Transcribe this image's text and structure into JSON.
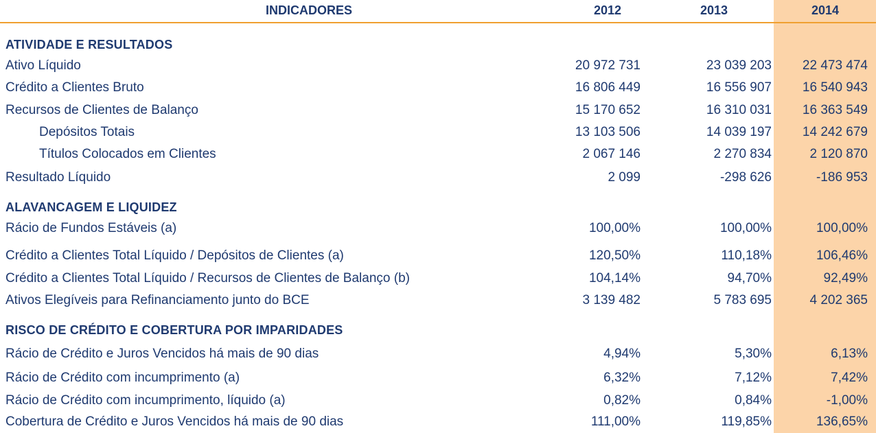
{
  "header": {
    "indicators": "INDICADORES",
    "years": [
      "2012",
      "2013",
      "2014"
    ]
  },
  "sections": [
    {
      "title": "ATIVIDADE E RESULTADOS",
      "rows": [
        {
          "label": "Ativo Líquido",
          "values": [
            "20 972 731",
            "23 039 203",
            "22 473 474"
          ]
        },
        {
          "label": "Crédito a Clientes Bruto",
          "values": [
            "16 806 449",
            "16 556 907",
            "16 540 943"
          ]
        },
        {
          "label": "Recursos de Clientes de Balanço",
          "values": [
            "15 170 652",
            "16 310 031",
            "16 363 549"
          ]
        },
        {
          "label": "Depósitos Totais",
          "values": [
            "13 103 506",
            "14 039 197",
            "14 242 679"
          ],
          "indent": true
        },
        {
          "label": "Títulos Colocados em Clientes",
          "values": [
            "2 067 146",
            "2 270 834",
            "2 120 870"
          ],
          "indent": true
        },
        {
          "label": "Resultado Líquido",
          "values": [
            "2 099",
            "-298 626",
            "-186 953"
          ]
        }
      ]
    },
    {
      "title": "ALAVANCAGEM E LIQUIDEZ",
      "rows": [
        {
          "label": "Rácio de Fundos Estáveis (a)",
          "values": [
            "100,00%",
            "100,00%",
            "100,00%"
          ]
        },
        {
          "label": "Crédito a Clientes Total Líquido / Depósitos de Clientes (a)",
          "values": [
            "120,50%",
            "110,18%",
            "106,46%"
          ]
        },
        {
          "label": "Crédito a Clientes Total Líquido / Recursos de Clientes de Balanço (b)",
          "values": [
            "104,14%",
            "94,70%",
            "92,49%"
          ]
        },
        {
          "label": "Ativos Elegíveis para Refinanciamento junto do BCE",
          "values": [
            "3 139 482",
            "5 783 695",
            "4 202 365"
          ]
        }
      ]
    },
    {
      "title": "RISCO DE CRÉDITO E COBERTURA POR IMPARIDADES",
      "rows": [
        {
          "label": "Rácio de Crédito e Juros Vencidos há mais de 90 dias",
          "values": [
            "4,94%",
            "5,30%",
            "6,13%"
          ]
        },
        {
          "label": "Rácio de Crédito com incumprimento (a)",
          "values": [
            "6,32%",
            "7,12%",
            "7,42%"
          ]
        },
        {
          "label": "Rácio de Crédito com incumprimento, líquido (a)",
          "values": [
            "0,82%",
            "0,84%",
            "-1,00%"
          ]
        },
        {
          "label": "Cobertura de Crédito e Juros Vencidos há mais de 90 dias",
          "values": [
            "111,00%",
            "119,85%",
            "136,65%"
          ]
        }
      ]
    }
  ],
  "colors": {
    "text": "#1f3a70",
    "highlight_column": "#fcd4a9",
    "header_rule": "#f0a030"
  }
}
